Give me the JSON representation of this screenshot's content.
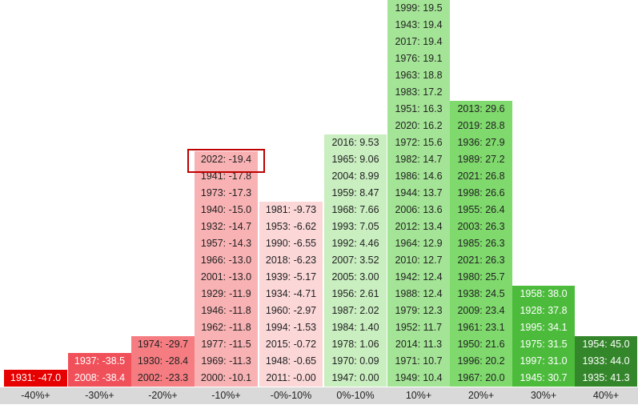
{
  "chart_data": {
    "type": "table",
    "title": "",
    "categories": [
      "-40%+",
      "-30%+",
      "-20%+",
      "-10%+",
      "-0%-10%",
      "0%-10%",
      "10%+",
      "20%+",
      "30%+",
      "40%+"
    ],
    "columns": [
      {
        "category": "-40%+",
        "color": "#e60000",
        "text_color": "#ffffff",
        "entries": [
          "1931: -47.0"
        ]
      },
      {
        "category": "-30%+",
        "color": "#f0505a",
        "text_color": "#ffffff",
        "entries": [
          "2008: -38.4",
          "1937: -38.5"
        ]
      },
      {
        "category": "-20%+",
        "color": "#f57d82",
        "text_color": "#222222",
        "entries": [
          "2002: -23.3",
          "1930: -28.4",
          "1974: -29.7"
        ]
      },
      {
        "category": "-10%+",
        "color": "#f9b2b4",
        "text_color": "#222222",
        "entries": [
          "2000: -10.1",
          "1969: -11.3",
          "1977: -11.5",
          "1962: -11.8",
          "1946: -11.8",
          "1929: -11.9",
          "2001: -13.0",
          "1966: -13.0",
          "1957: -14.3",
          "1932: -14.7",
          "1940: -15.0",
          "1973: -17.3",
          "1941: -17.8",
          "2022: -19.4"
        ]
      },
      {
        "category": "-0%-10%",
        "color": "#fbd7d8",
        "text_color": "#222222",
        "entries": [
          "2011: -0.00",
          "1948: -0.65",
          "2015: -0.72",
          "1994: -1.53",
          "1960: -2.97",
          "1934: -4.71",
          "1939: -5.17",
          "2018: -6.23",
          "1990: -6.55",
          "1953: -6.62",
          "1981: -9.73"
        ]
      },
      {
        "category": "0%-10%",
        "color": "#c9eec0",
        "text_color": "#222222",
        "entries": [
          "1947: 0.00",
          "1970: 0.09",
          "1978: 1.06",
          "1984: 1.40",
          "1987: 2.02",
          "1956: 2.61",
          "2005: 3.00",
          "2007: 3.52",
          "1992: 4.46",
          "1993: 7.05",
          "1968: 7.66",
          "1959: 8.47",
          "2004: 8.99",
          "1965: 9.06",
          "2016: 9.53"
        ]
      },
      {
        "category": "10%+",
        "color": "#a4e496",
        "text_color": "#222222",
        "entries": [
          "1949: 10.4",
          "1971: 10.7",
          "2014: 11.3",
          "1952: 11.7",
          "1979: 12.3",
          "1988: 12.4",
          "1942: 12.4",
          "2010: 12.7",
          "1964: 12.9",
          "2012: 13.4",
          "2006: 13.6",
          "1944: 13.7",
          "1986: 14.6",
          "1982: 14.7",
          "1972: 15.6",
          "2020: 16.2",
          "1951: 16.3",
          "1983: 17.2",
          "1963: 18.8",
          "1976: 19.1",
          "2017: 19.4",
          "1943: 19.4",
          "1999: 19.5"
        ]
      },
      {
        "category": "20%+",
        "color": "#7fd96d",
        "text_color": "#222222",
        "entries": [
          "1967: 20.0",
          "1996: 20.2",
          "1950: 21.6",
          "1961: 23.1",
          "2009: 23.4",
          "1938: 24.5",
          "1980: 25.7",
          "2021: 26.3",
          "1985: 26.3",
          "2003: 26.3",
          "1955: 26.4",
          "1998: 26.6",
          "2021: 26.8",
          "1989: 27.2",
          "1936: 27.9",
          "2019: 28.8",
          "2013: 29.6"
        ]
      },
      {
        "category": "30%+",
        "color": "#4cbb3c",
        "text_color": "#ffffff",
        "entries": [
          "1945: 30.7",
          "1997: 31.0",
          "1975: 31.5",
          "1995: 34.1",
          "1928: 37.8",
          "1958: 38.0"
        ]
      },
      {
        "category": "40%+",
        "color": "#34862b",
        "text_color": "#ffffff",
        "entries": [
          "1935: 41.3",
          "1933: 44.0",
          "1954: 45.0"
        ]
      }
    ],
    "highlight": {
      "category": "-10%+",
      "entry": "2022: -19.4",
      "color": "#c00000"
    },
    "axis_color": "#d9d9d9"
  }
}
